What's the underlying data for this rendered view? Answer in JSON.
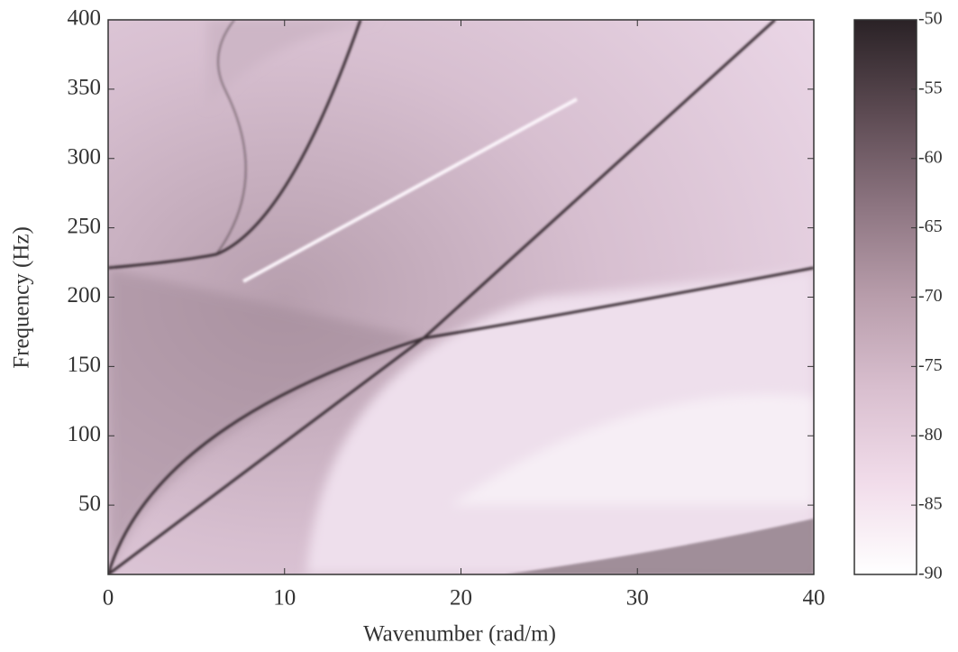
{
  "chart_data": {
    "type": "heatmap",
    "x_label": "Wavenumber (rad/m)",
    "y_label": "Frequency (Hz)",
    "xlim": [
      0,
      40
    ],
    "xticks": [
      0,
      10,
      20,
      30,
      40
    ],
    "ylim": [
      0,
      400
    ],
    "yticks": [
      50,
      100,
      150,
      200,
      250,
      300,
      350,
      400
    ],
    "colorbar": {
      "clim": [
        -90,
        -50
      ],
      "ticks": [
        -50,
        -55,
        -60,
        -65,
        -70,
        -75,
        -80,
        -85,
        -90
      ],
      "colors": [
        "#ffffff",
        "#f1dcea",
        "#d9bfcf",
        "#b89dab",
        "#8c7480",
        "#5c4a52",
        "#2a2226"
      ]
    }
  }
}
